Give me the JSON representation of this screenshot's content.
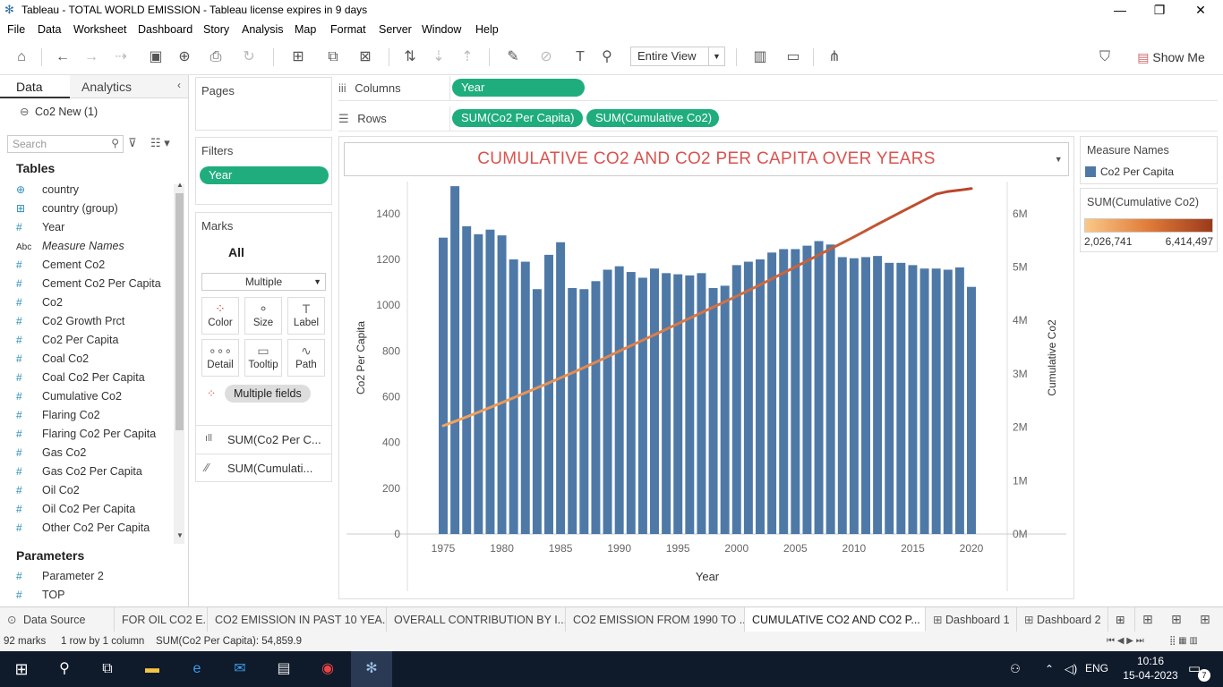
{
  "window": {
    "title": "Tableau - TOTAL WORLD EMISSION - Tableau license expires in 9 days"
  },
  "menu": [
    "File",
    "Data",
    "Worksheet",
    "Dashboard",
    "Story",
    "Analysis",
    "Map",
    "Format",
    "Server",
    "Window",
    "Help"
  ],
  "toolbar": {
    "view_select": "Entire View",
    "show_me": "Show Me"
  },
  "datapane": {
    "tabs": {
      "data": "Data",
      "analytics": "Analytics"
    },
    "datasource": "Co2 New (1)",
    "search_placeholder": "Search",
    "tables_heading": "Tables",
    "fields": [
      {
        "icon": "globe-icon",
        "glyph": "⊕",
        "name": "country"
      },
      {
        "icon": "group-icon",
        "glyph": "⊞",
        "name": "country (group)"
      },
      {
        "icon": "number-icon",
        "glyph": "#",
        "name": "Year"
      },
      {
        "icon": "string-icon",
        "glyph": "Abc",
        "name": "Measure Names"
      },
      {
        "icon": "number-icon",
        "glyph": "#",
        "name": "Cement Co2"
      },
      {
        "icon": "number-icon",
        "glyph": "#",
        "name": "Cement Co2 Per Capita"
      },
      {
        "icon": "number-icon",
        "glyph": "#",
        "name": "Co2"
      },
      {
        "icon": "number-icon",
        "glyph": "#",
        "name": "Co2 Growth Prct"
      },
      {
        "icon": "number-icon",
        "glyph": "#",
        "name": "Co2 Per Capita"
      },
      {
        "icon": "number-icon",
        "glyph": "#",
        "name": "Coal Co2"
      },
      {
        "icon": "number-icon",
        "glyph": "#",
        "name": "Coal Co2 Per Capita"
      },
      {
        "icon": "number-icon",
        "glyph": "#",
        "name": "Cumulative Co2"
      },
      {
        "icon": "number-icon",
        "glyph": "#",
        "name": "Flaring Co2"
      },
      {
        "icon": "number-icon",
        "glyph": "#",
        "name": "Flaring Co2 Per Capita"
      },
      {
        "icon": "number-icon",
        "glyph": "#",
        "name": "Gas Co2"
      },
      {
        "icon": "number-icon",
        "glyph": "#",
        "name": "Gas Co2 Per Capita"
      },
      {
        "icon": "number-icon",
        "glyph": "#",
        "name": "Oil Co2"
      },
      {
        "icon": "number-icon",
        "glyph": "#",
        "name": "Oil Co2 Per Capita"
      },
      {
        "icon": "number-icon",
        "glyph": "#",
        "name": "Other Co2 Per Capita"
      }
    ],
    "parameters_heading": "Parameters",
    "parameters": [
      {
        "glyph": "#",
        "name": "Parameter 2"
      },
      {
        "glyph": "#",
        "name": "TOP"
      }
    ]
  },
  "cards": {
    "pages": "Pages",
    "filters": "Filters",
    "filter_pill": "Year",
    "marks": "Marks",
    "marks_all": "All",
    "mark_type": "Multiple",
    "buttons": [
      "Color",
      "Size",
      "Label",
      "Detail",
      "Tooltip",
      "Path"
    ],
    "multiple_fields": "Multiple fields",
    "mark_layers": [
      "SUM(Co2 Per C...",
      "SUM(Cumulati..."
    ]
  },
  "shelves": {
    "columns_label": "Columns",
    "columns_pills": [
      "Year"
    ],
    "rows_label": "Rows",
    "rows_pills": [
      "SUM(Co2 Per Capita)",
      "SUM(Cumulative Co2)"
    ]
  },
  "legends": {
    "measure_names_title": "Measure Names",
    "measure_names_item": "Co2 Per Capita",
    "cumulative_title": "SUM(Cumulative Co2)",
    "cumulative_min": "2,026,741",
    "cumulative_max": "6,414,497"
  },
  "colors": {
    "bar": "#4e79a7",
    "line_start": "#f2a35e",
    "line_end": "#b8452a",
    "pill": "#1fad7e",
    "title": "#d9534f"
  },
  "chart_data": {
    "type": "bar",
    "title": "CUMULATIVE CO2 AND CO2 PER CAPITA OVER YEARS",
    "xlabel": "Year",
    "ylabel": "Co2 Per Capita",
    "y2label": "Cumulative Co2",
    "x": [
      1975,
      1976,
      1977,
      1978,
      1979,
      1980,
      1981,
      1982,
      1983,
      1984,
      1985,
      1986,
      1987,
      1988,
      1989,
      1990,
      1991,
      1992,
      1993,
      1994,
      1995,
      1996,
      1997,
      1998,
      1999,
      2000,
      2001,
      2002,
      2003,
      2004,
      2005,
      2006,
      2007,
      2008,
      2009,
      2010,
      2011,
      2012,
      2013,
      2014,
      2015,
      2016,
      2017,
      2018,
      2019,
      2020
    ],
    "x_ticks": [
      1975,
      1980,
      1985,
      1990,
      1995,
      2000,
      2005,
      2010,
      2015,
      2020
    ],
    "ylim": [
      0,
      1540
    ],
    "y_ticks": [
      0,
      200,
      400,
      600,
      800,
      1000,
      1200,
      1400
    ],
    "y2lim": [
      0,
      6600000
    ],
    "y2_ticks": [
      {
        "v": 0,
        "label": "0M"
      },
      {
        "v": 1000000,
        "label": "1M"
      },
      {
        "v": 2000000,
        "label": "2M"
      },
      {
        "v": 3000000,
        "label": "3M"
      },
      {
        "v": 4000000,
        "label": "4M"
      },
      {
        "v": 5000000,
        "label": "5M"
      },
      {
        "v": 6000000,
        "label": "6M"
      }
    ],
    "series": [
      {
        "name": "Co2 Per Capita",
        "axis": "left",
        "kind": "bar",
        "values": [
          1295,
          1520,
          1345,
          1310,
          1330,
          1305,
          1200,
          1190,
          1070,
          1220,
          1275,
          1075,
          1070,
          1105,
          1155,
          1170,
          1145,
          1120,
          1160,
          1140,
          1135,
          1130,
          1140,
          1075,
          1085,
          1175,
          1190,
          1200,
          1230,
          1245,
          1245,
          1260,
          1280,
          1265,
          1210,
          1205,
          1210,
          1215,
          1185,
          1185,
          1175,
          1160,
          1160,
          1155,
          1165,
          1080
        ]
      },
      {
        "name": "SUM(Cumulative Co2)",
        "axis": "right",
        "kind": "line",
        "values": [
          2026741,
          2110000,
          2195000,
          2282000,
          2370000,
          2460000,
          2552000,
          2645000,
          2738000,
          2830000,
          2925000,
          3020000,
          3118000,
          3218000,
          3320000,
          3425000,
          3528000,
          3630000,
          3732000,
          3835000,
          3938000,
          4042000,
          4145000,
          4248000,
          4350000,
          4455000,
          4560000,
          4668000,
          4778000,
          4890000,
          5002000,
          5115000,
          5228000,
          5340000,
          5452000,
          5565000,
          5682000,
          5800000,
          5915000,
          6030000,
          6143000,
          6255000,
          6367000,
          6414497,
          6440000,
          6470000
        ]
      }
    ]
  },
  "sheet_tabs": [
    "Data Source",
    "FOR OIL CO2 E...",
    "CO2 EMISSION IN PAST 10 YEA...",
    "OVERALL CONTRIBUTION BY I...",
    "CO2 EMISSION FROM 1990 TO ...",
    "CUMULATIVE CO2 AND CO2 P...",
    "Dashboard 1",
    "Dashboard 2"
  ],
  "status": {
    "marks": "92 marks",
    "rows": "1 row by 1 column",
    "sum": "SUM(Co2 Per Capita): 54,859.9"
  },
  "taskbar": {
    "lang": "ENG",
    "time": "10:16",
    "date": "15-04-2023",
    "notif_count": "7"
  }
}
